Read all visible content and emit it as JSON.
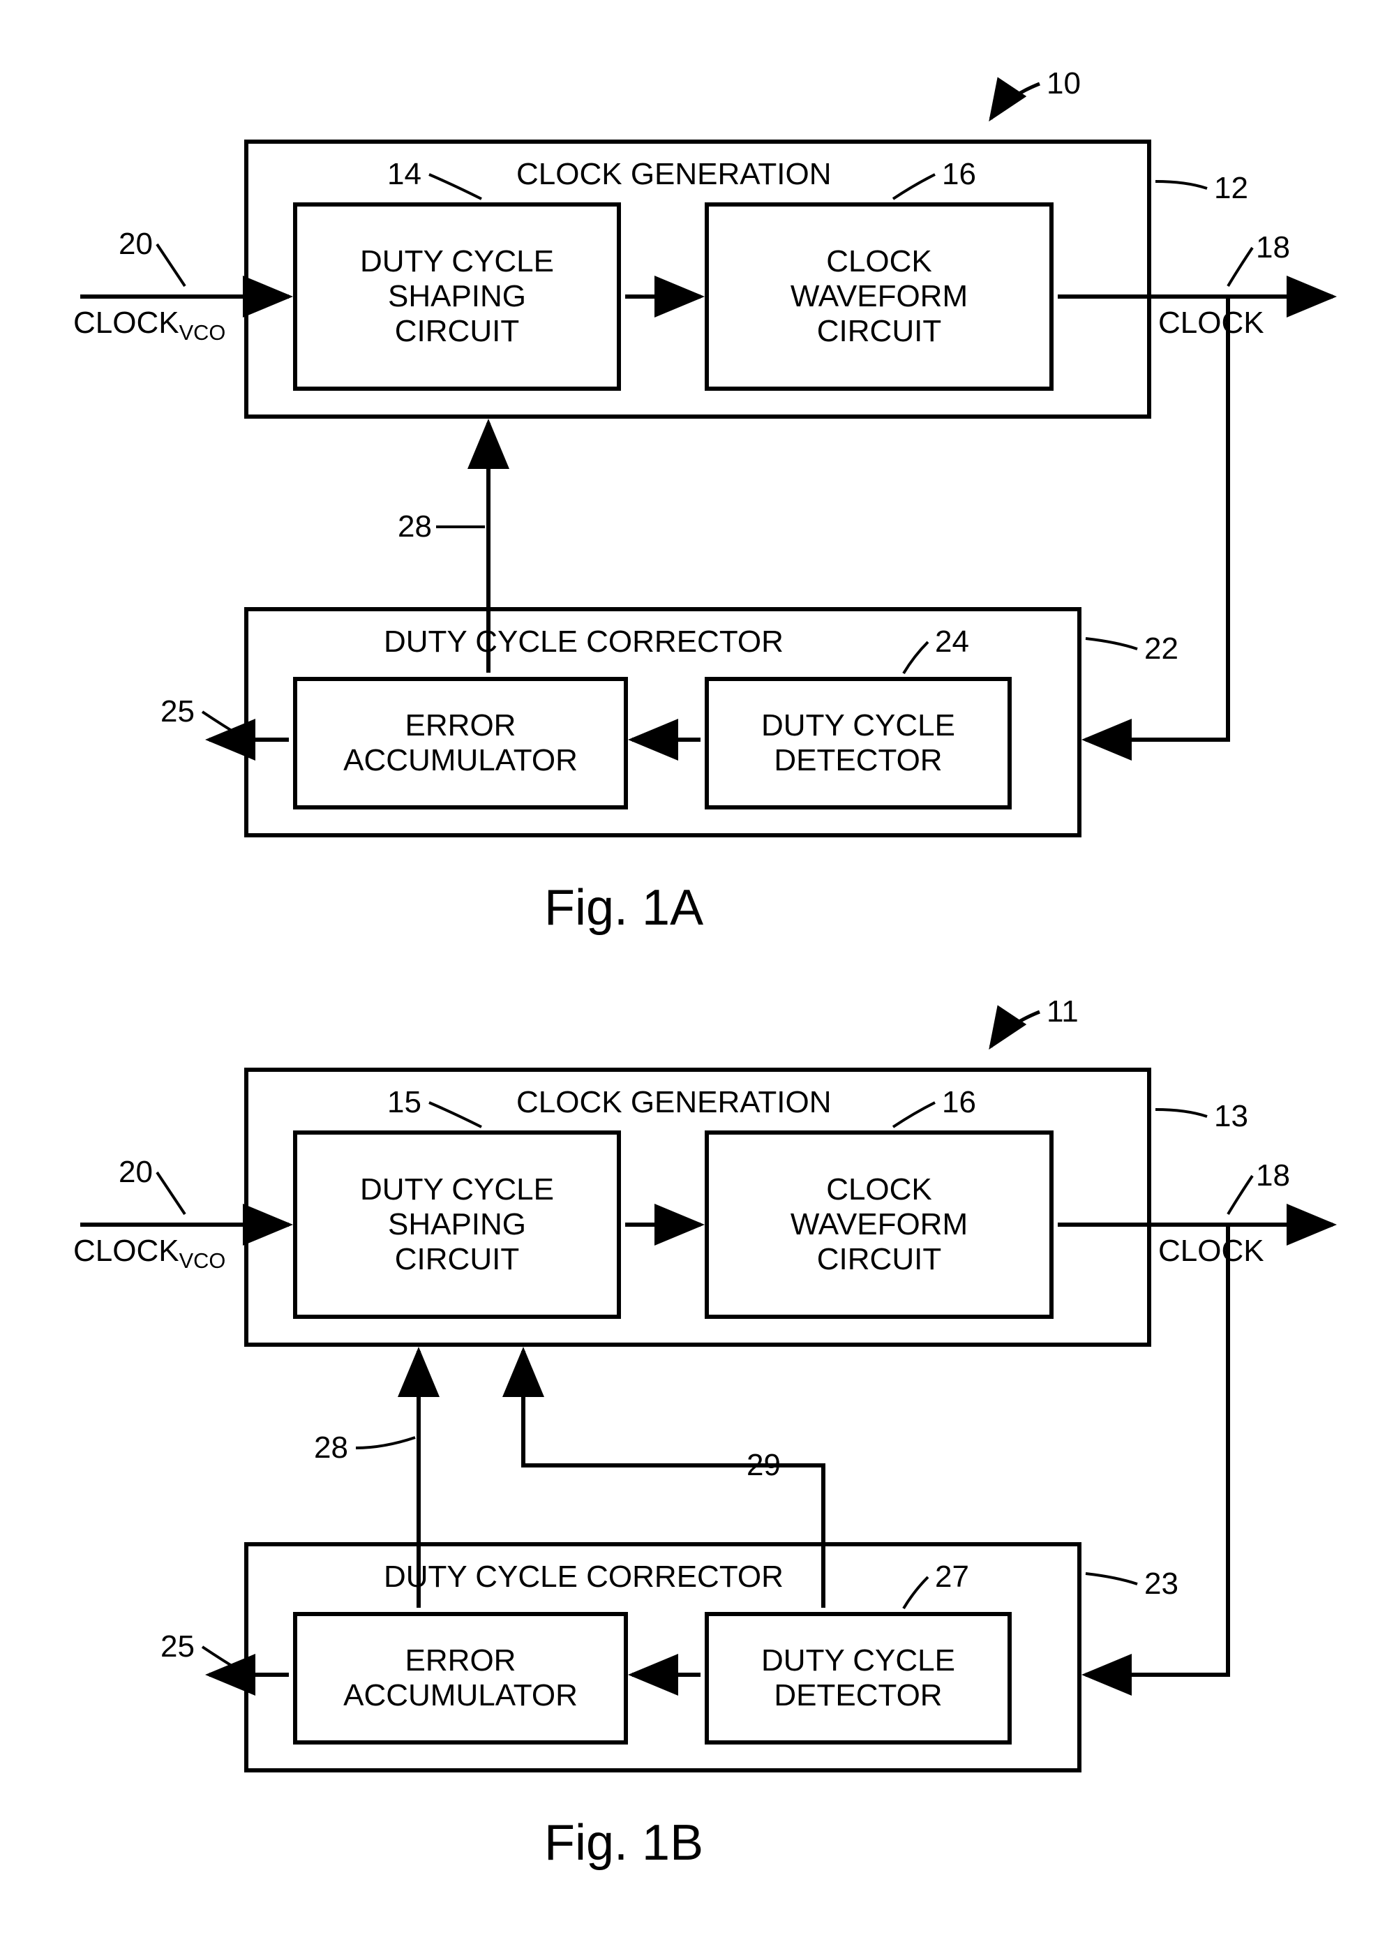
{
  "figA": {
    "caption": "Fig. 1A",
    "caption_fontsize": 72,
    "topRef": "10",
    "clockGen": {
      "title": "CLOCK GENERATION",
      "ref": "12",
      "shaping": {
        "text": "DUTY CYCLE\nSHAPING\nCIRCUIT",
        "ref": "14"
      },
      "waveform": {
        "text": "CLOCK\nWAVEFORM\nCIRCUIT",
        "ref": "16"
      }
    },
    "corrector": {
      "title": "DUTY CYCLE CORRECTOR",
      "ref": "22",
      "accumulator": {
        "text": "ERROR\nACCUMULATOR",
        "ref": "25"
      },
      "detector": {
        "text": "DUTY CYCLE\nDETECTOR",
        "ref": "24"
      }
    },
    "input": {
      "text": "CLOCK",
      "sub": "VCO",
      "ref": "20"
    },
    "output": {
      "text": "CLOCK",
      "ref": "18"
    },
    "feedbackRef": "28"
  },
  "figB": {
    "caption": "Fig. 1B",
    "caption_fontsize": 72,
    "topRef": "11",
    "clockGen": {
      "title": "CLOCK GENERATION",
      "ref": "13",
      "shaping": {
        "text": "DUTY CYCLE\nSHAPING\nCIRCUIT",
        "ref": "15"
      },
      "waveform": {
        "text": "CLOCK\nWAVEFORM\nCIRCUIT",
        "ref": "16"
      }
    },
    "corrector": {
      "title": "DUTY CYCLE CORRECTOR",
      "ref": "23",
      "accumulator": {
        "text": "ERROR\nACCUMULATOR",
        "ref": "25"
      },
      "detector": {
        "text": "DUTY CYCLE\nDETECTOR",
        "ref": "27"
      }
    },
    "input": {
      "text": "CLOCK",
      "sub": "VCO",
      "ref": "20"
    },
    "output": {
      "text": "CLOCK",
      "ref": "18"
    },
    "feedbackRef": "28",
    "extraRef": "29"
  },
  "style": {
    "label_fontsize": 44,
    "box_font_size": 44,
    "line_width": 6,
    "arrow_size": 22,
    "colors": {
      "stroke": "#000000",
      "bg": "#ffffff"
    }
  }
}
